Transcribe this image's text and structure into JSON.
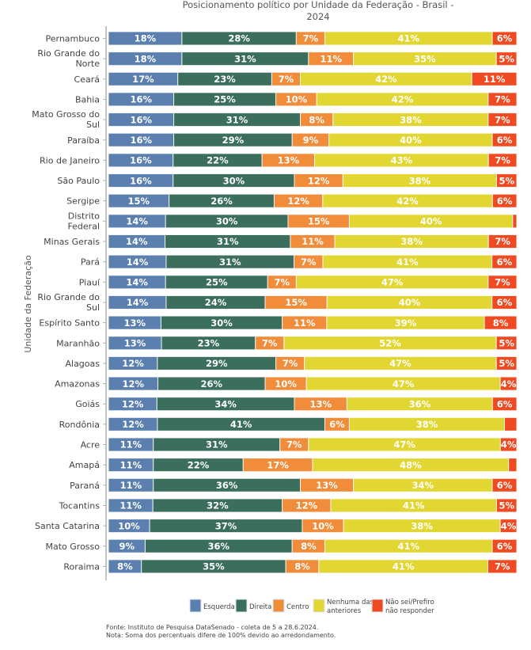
{
  "chart_data": {
    "type": "bar",
    "orientation": "horizontal",
    "stacked": true,
    "percent": true,
    "title_lines": [
      "Posicionamento político por Unidade da Federação - Brasil -",
      "2024"
    ],
    "ylabel": "Unidade da Federação",
    "xlabel": "",
    "xlim": [
      0,
      100
    ],
    "grid": false,
    "legend_position": "bottom",
    "categories": [
      [
        "Pernambuco"
      ],
      [
        "Rio Grande do",
        "Norte"
      ],
      [
        "Ceará"
      ],
      [
        "Bahia"
      ],
      [
        "Mato Grosso do",
        "Sul"
      ],
      [
        "Paraíba"
      ],
      [
        "Rio de Janeiro"
      ],
      [
        "São Paulo"
      ],
      [
        "Sergipe"
      ],
      [
        "Distrito",
        "Federal"
      ],
      [
        "Minas Gerais"
      ],
      [
        "Pará"
      ],
      [
        "Piauí"
      ],
      [
        "Rio Grande do",
        "Sul"
      ],
      [
        "Espírito Santo"
      ],
      [
        "Maranhão"
      ],
      [
        "Alagoas"
      ],
      [
        "Amazonas"
      ],
      [
        "Goiás"
      ],
      [
        "Rondônia"
      ],
      [
        "Acre"
      ],
      [
        "Amapá"
      ],
      [
        "Paraná"
      ],
      [
        "Tocantins"
      ],
      [
        "Santa Catarina"
      ],
      [
        "Mato Grosso"
      ],
      [
        "Roraima"
      ]
    ],
    "series": [
      {
        "name": "Esquerda",
        "color": "#5b7fae",
        "values": [
          18,
          18,
          17,
          16,
          16,
          16,
          16,
          16,
          15,
          14,
          14,
          14,
          14,
          14,
          13,
          13,
          12,
          12,
          12,
          12,
          11,
          11,
          11,
          11,
          10,
          9,
          8
        ],
        "labeled": [
          true,
          true,
          true,
          true,
          true,
          true,
          true,
          true,
          true,
          true,
          true,
          true,
          true,
          true,
          true,
          true,
          true,
          true,
          true,
          true,
          true,
          true,
          true,
          true,
          true,
          true,
          true
        ]
      },
      {
        "name": "Direita",
        "color": "#3b6e5c",
        "values": [
          28,
          31,
          23,
          25,
          31,
          29,
          22,
          30,
          26,
          30,
          31,
          31,
          25,
          24,
          30,
          23,
          29,
          26,
          34,
          41,
          31,
          22,
          36,
          32,
          37,
          36,
          35
        ],
        "labeled": [
          true,
          true,
          true,
          true,
          true,
          true,
          true,
          true,
          true,
          true,
          true,
          true,
          true,
          true,
          true,
          true,
          true,
          true,
          true,
          true,
          true,
          true,
          true,
          true,
          true,
          true,
          true
        ]
      },
      {
        "name": "Centro",
        "color": "#f08c3a",
        "values": [
          7,
          11,
          7,
          10,
          8,
          9,
          13,
          12,
          12,
          15,
          11,
          7,
          7,
          15,
          11,
          7,
          7,
          10,
          13,
          6,
          7,
          17,
          13,
          12,
          10,
          8,
          8
        ],
        "labeled": [
          true,
          true,
          true,
          true,
          true,
          true,
          true,
          true,
          true,
          true,
          true,
          true,
          true,
          true,
          true,
          true,
          true,
          true,
          true,
          true,
          true,
          true,
          true,
          true,
          true,
          true,
          true
        ]
      },
      {
        "name": "Nenhuma das anteriores",
        "color": "#e2d633",
        "values": [
          41,
          35,
          42,
          42,
          38,
          40,
          43,
          38,
          42,
          40,
          38,
          41,
          47,
          40,
          39,
          52,
          47,
          47,
          36,
          38,
          47,
          48,
          34,
          41,
          38,
          41,
          41
        ],
        "labeled": [
          true,
          true,
          true,
          true,
          true,
          true,
          true,
          true,
          true,
          true,
          true,
          true,
          true,
          true,
          true,
          true,
          true,
          true,
          true,
          true,
          true,
          true,
          true,
          true,
          true,
          true,
          true
        ]
      },
      {
        "name": "Não sei/Prefiro não responder",
        "color": "#f04a22",
        "values": [
          6,
          5,
          11,
          7,
          7,
          6,
          7,
          5,
          6,
          1,
          7,
          6,
          7,
          6,
          8,
          5,
          5,
          4,
          6,
          3,
          4,
          2,
          6,
          5,
          4,
          6,
          7
        ],
        "labeled": [
          true,
          true,
          true,
          true,
          true,
          true,
          true,
          true,
          true,
          false,
          true,
          true,
          true,
          true,
          true,
          true,
          true,
          true,
          true,
          false,
          true,
          false,
          true,
          true,
          true,
          true,
          true
        ]
      }
    ],
    "legend": [
      {
        "lines": [
          "Esquerda"
        ],
        "color": "#5b7fae"
      },
      {
        "lines": [
          "Direita"
        ],
        "color": "#3b6e5c"
      },
      {
        "lines": [
          "Centro"
        ],
        "color": "#f08c3a"
      },
      {
        "lines": [
          "Nenhuma das",
          "anteriores"
        ],
        "color": "#e2d633"
      },
      {
        "lines": [
          "Não sei/Prefiro",
          "não responder"
        ],
        "color": "#f04a22"
      }
    ],
    "footnotes": [
      "Fonte: Instituto de Pesquisa DataSenado - coleta de 5 a 28.6.2024.",
      "Nota: Soma dos percentuais difere de 100% devido ao arredondamento."
    ],
    "value_suffix": "%"
  }
}
